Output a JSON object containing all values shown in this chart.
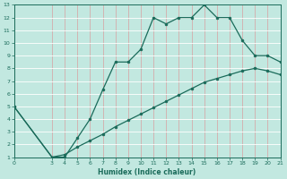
{
  "xlabel": "Humidex (Indice chaleur)",
  "xlim": [
    0,
    21
  ],
  "ylim": [
    1,
    13
  ],
  "xticks": [
    0,
    3,
    4,
    5,
    6,
    7,
    8,
    9,
    10,
    11,
    12,
    13,
    14,
    15,
    16,
    17,
    18,
    19,
    20,
    21
  ],
  "yticks": [
    1,
    2,
    3,
    4,
    5,
    6,
    7,
    8,
    9,
    10,
    11,
    12,
    13
  ],
  "bg_color": "#c2e8e0",
  "line_color": "#1a6b5a",
  "grid_h_color": "#ffffff",
  "grid_v_color": "#d8a0a0",
  "upper_line_x": [
    0,
    3,
    4,
    5,
    6,
    7,
    8,
    9,
    10,
    11,
    12,
    13,
    14,
    15,
    16,
    17,
    18,
    19,
    20,
    21
  ],
  "upper_line_y": [
    5,
    1,
    1,
    2.5,
    4,
    6.3,
    8.5,
    8.5,
    9.5,
    12,
    11.5,
    12,
    12,
    13,
    12,
    12,
    10.2,
    9,
    9,
    8.5
  ],
  "lower_line_x": [
    0,
    3,
    4,
    5,
    6,
    7,
    8,
    9,
    10,
    11,
    12,
    13,
    14,
    15,
    16,
    17,
    18,
    19,
    20,
    21
  ],
  "lower_line_y": [
    5,
    1,
    1.2,
    1.8,
    2.3,
    2.8,
    3.4,
    3.9,
    4.4,
    4.9,
    5.4,
    5.9,
    6.4,
    6.9,
    7.2,
    7.5,
    7.8,
    8.0,
    7.8,
    7.5
  ]
}
